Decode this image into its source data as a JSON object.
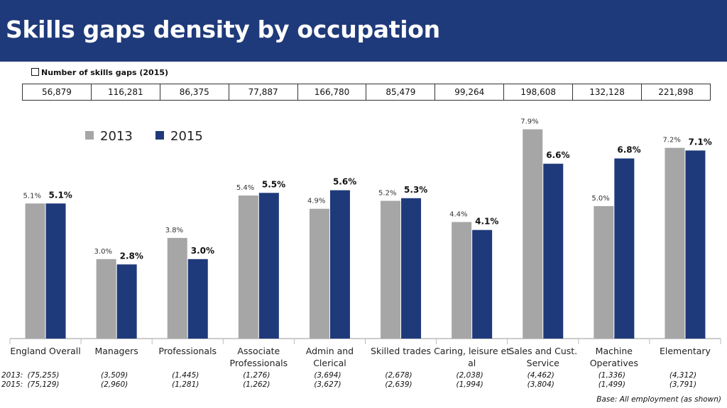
{
  "header": {
    "title": "Skills gaps density by occupation"
  },
  "colors": {
    "header_bg": "#1f3a7a",
    "series_2013": "#a6a6a6",
    "series_2015": "#1f3a7a"
  },
  "gaps_table": {
    "label": "Number of skills gaps (2015)",
    "values": [
      "56,879",
      "116,281",
      "86,375",
      "77,887",
      "166,780",
      "85,479",
      "99,264",
      "198,608",
      "132,128",
      "221,898"
    ]
  },
  "base_note": "Base: All employment  (as shown)",
  "bases": {
    "label_2013": "2013:",
    "label_2015": "2015:",
    "values_2013": [
      "(75,255)",
      "(3,509)",
      "(1,445)",
      "(1,276)",
      "(3,694)",
      "(2,678)",
      "(2,038)",
      "(4,462)",
      "(1,336)",
      "(4,312)"
    ],
    "values_2015": [
      "(75,129)",
      "(2,960)",
      "(1,281)",
      "(1,262)",
      "(3,627)",
      "(2,639)",
      "(1,994)",
      "(3,804)",
      "(1,499)",
      "(3,791)"
    ]
  },
  "chart_data": {
    "type": "bar",
    "title": "Skills gaps density by occupation",
    "categories": [
      [
        "England Overall"
      ],
      [
        "Managers"
      ],
      [
        "Professionals"
      ],
      [
        "Associate",
        "Professionals"
      ],
      [
        "Admin and",
        "Clerical"
      ],
      [
        "Skilled trades"
      ],
      [
        "Caring, leisure et",
        "al"
      ],
      [
        "Sales and Cust.",
        "Service"
      ],
      [
        "Machine",
        "Operatives"
      ],
      [
        "Elementary"
      ]
    ],
    "series": [
      {
        "name": "2013",
        "values": [
          5.1,
          3.0,
          3.8,
          5.4,
          4.9,
          5.2,
          4.4,
          7.9,
          5.0,
          7.2
        ],
        "labels": [
          "5.1%",
          "3.0%",
          "3.8%",
          "5.4%",
          "4.9%",
          "5.2%",
          "4.4%",
          "7.9%",
          "5.0%",
          "7.2%"
        ]
      },
      {
        "name": "2015",
        "values": [
          5.1,
          2.8,
          3.0,
          5.5,
          5.6,
          5.3,
          4.1,
          6.6,
          6.8,
          7.1
        ],
        "labels": [
          "5.1%",
          "2.8%",
          "3.0%",
          "5.5%",
          "5.6%",
          "5.3%",
          "4.1%",
          "6.6%",
          "6.8%",
          "7.1%"
        ]
      }
    ],
    "ylim": [
      0,
      8.8
    ],
    "grid": false,
    "legend_position": "top-left"
  }
}
